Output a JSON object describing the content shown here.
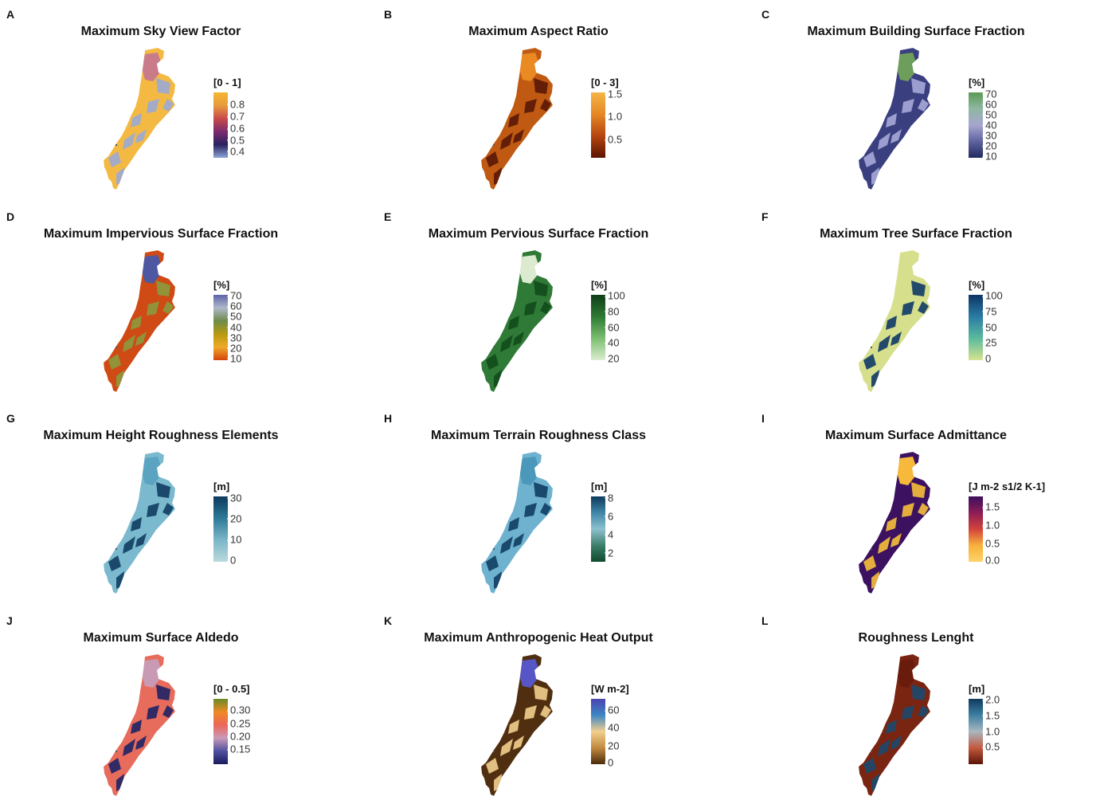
{
  "panels": [
    {
      "letter": "A",
      "title": "Maximum Sky View Factor",
      "legend_title": "[0 - 1]",
      "ticks": [
        "0.8",
        "0.7",
        "0.6",
        "0.5",
        "0.4"
      ],
      "tick_pos": [
        0.18,
        0.37,
        0.55,
        0.73,
        0.9
      ],
      "colors": [
        "#f5b731",
        "#e89a3e",
        "#c94a4a",
        "#7a2a6e",
        "#2a2360",
        "#8aa5d6"
      ],
      "base": "#f4b942",
      "blob": "#c97b8a",
      "patch": "#9aaad6"
    },
    {
      "letter": "B",
      "title": "Maximum Aspect Ratio",
      "legend_title": "[0 - 3]",
      "ticks": [
        "1.5",
        "1.0",
        "0.5"
      ],
      "tick_pos": [
        0.02,
        0.36,
        0.72
      ],
      "colors": [
        "#f4b545",
        "#e58826",
        "#b5450f",
        "#5a1503"
      ],
      "base": "#c05a12",
      "blob": "#e98a22",
      "patch": "#5a1606"
    },
    {
      "letter": "C",
      "title": "Maximum Building Surface Fraction",
      "legend_title": "[%]",
      "ticks": [
        "70",
        "60",
        "50",
        "40",
        "30",
        "20",
        "10"
      ],
      "tick_pos": [
        0.02,
        0.18,
        0.34,
        0.5,
        0.66,
        0.82,
        0.98
      ],
      "colors": [
        "#5b9a53",
        "#8fb7a3",
        "#a6a6cf",
        "#5e63a0",
        "#222a5c"
      ],
      "base": "#3a3f80",
      "blob": "#6e9e5c",
      "patch": "#a6a9d6"
    },
    {
      "letter": "D",
      "title": "Maximum Impervious Surface Fraction",
      "legend_title": "[%]",
      "ticks": [
        "70",
        "60",
        "50",
        "40",
        "30",
        "20",
        "10"
      ],
      "tick_pos": [
        0.02,
        0.18,
        0.34,
        0.5,
        0.66,
        0.82,
        0.98
      ],
      "colors": [
        "#5c62a8",
        "#aeb8c9",
        "#6e8a4a",
        "#b79a10",
        "#efa92a",
        "#d4450a"
      ],
      "base": "#cf4a14",
      "blob": "#4e58a2",
      "patch": "#8a9a3e"
    },
    {
      "letter": "E",
      "title": "Maximum Pervious Surface Fraction",
      "legend_title": "[%]",
      "ticks": [
        "100",
        "80",
        "60",
        "40",
        "20"
      ],
      "tick_pos": [
        0.02,
        0.26,
        0.5,
        0.74,
        0.98
      ],
      "colors": [
        "#0f3d17",
        "#2e7a33",
        "#7bbf70",
        "#dcecd0"
      ],
      "base": "#2f7a36",
      "blob": "#dcead0",
      "patch": "#124a1c"
    },
    {
      "letter": "F",
      "title": "Maximum Tree Surface Fraction",
      "legend_title": "[%]",
      "ticks": [
        "100",
        "75",
        "50",
        "25",
        "0"
      ],
      "tick_pos": [
        0.02,
        0.26,
        0.5,
        0.74,
        0.98
      ],
      "colors": [
        "#0d3564",
        "#2a7ca5",
        "#5bbb9c",
        "#d6e290"
      ],
      "base": "#d6df8c",
      "blob": "#d6df8c",
      "patch": "#0f3a66"
    },
    {
      "letter": "G",
      "title": "Maximum Height Roughness Elements",
      "legend_title": "[m]",
      "ticks": [
        "30",
        "20",
        "10",
        "0"
      ],
      "tick_pos": [
        0.02,
        0.34,
        0.66,
        0.98
      ],
      "colors": [
        "#0d3a5c",
        "#2f7a98",
        "#7bb6c7",
        "#b9d9dc"
      ],
      "base": "#7bb9cf",
      "blob": "#5aa4c2",
      "patch": "#0f3d60"
    },
    {
      "letter": "H",
      "title": "Maximum Terrain Roughness Class",
      "legend_title": "[m]",
      "ticks": [
        "8",
        "6",
        "4",
        "2"
      ],
      "tick_pos": [
        0.02,
        0.3,
        0.58,
        0.86
      ],
      "colors": [
        "#0d3a5c",
        "#3f86a8",
        "#8dc1ce",
        "#3c7f6a",
        "#104a2c"
      ],
      "base": "#6eb2cf",
      "blob": "#4c98bb",
      "patch": "#0f3d60"
    },
    {
      "letter": "I",
      "title": "Maximum Surface Admittance",
      "legend_title": "[J m-2 s1/2 K-1]",
      "ticks": [
        "1.5",
        "1.0",
        "0.5",
        "0.0"
      ],
      "tick_pos": [
        0.16,
        0.44,
        0.72,
        0.98
      ],
      "colors": [
        "#3b0f5e",
        "#8c1d57",
        "#d3433b",
        "#f8b13c",
        "#fcd36a"
      ],
      "base": "#3b1160",
      "blob": "#f7b93a",
      "patch": "#f6c03a"
    },
    {
      "letter": "J",
      "title": "Maximum Surface Aldedo",
      "legend_title": "[0 - 0.5]",
      "ticks": [
        "0.30",
        "0.25",
        "0.20",
        "0.15"
      ],
      "tick_pos": [
        0.18,
        0.38,
        0.58,
        0.78
      ],
      "colors": [
        "#6a8a24",
        "#ef8a24",
        "#ec6658",
        "#c89ab8",
        "#5050a0",
        "#1a1a5e"
      ],
      "base": "#e76c5c",
      "blob": "#c89ab4",
      "patch": "#1d2366"
    },
    {
      "letter": "K",
      "title": "Maximum Anthropogenic Heat Output",
      "legend_title": "[W m-2]",
      "ticks": [
        "60",
        "40",
        "20",
        "0"
      ],
      "tick_pos": [
        0.18,
        0.45,
        0.72,
        0.98
      ],
      "colors": [
        "#4a44b0",
        "#3d86c4",
        "#f1cf8e",
        "#c28a3e",
        "#4a2a0c"
      ],
      "base": "#4f2f10",
      "blob": "#5656c6",
      "patch": "#f1cf8e"
    },
    {
      "letter": "L",
      "title": "Roughness Lenght",
      "legend_title": "[m]",
      "ticks": [
        "2.0",
        "1.5",
        "1.0",
        "0.5"
      ],
      "tick_pos": [
        0.02,
        0.26,
        0.5,
        0.74
      ],
      "colors": [
        "#0f3a5e",
        "#3e7fa2",
        "#a7b8c0",
        "#c45a40",
        "#5c1406"
      ],
      "base": "#7a2412",
      "blob": "#6a1c0c",
      "patch": "#1b4a6e"
    }
  ]
}
